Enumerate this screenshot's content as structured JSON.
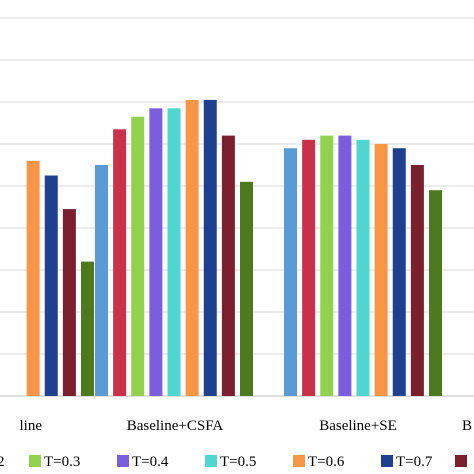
{
  "chart_data": {
    "type": "bar",
    "categories": [
      "line",
      "Baseline+CSFA",
      "Baseline+SE",
      "B"
    ],
    "series": [
      {
        "name": "",
        "color": "#5b9bd5",
        "values": [
          null,
          55.0,
          59.0,
          null
        ]
      },
      {
        "name": "",
        "color": "#c9304a",
        "values": [
          null,
          63.5,
          61.0,
          null
        ]
      },
      {
        "name": "T=0.3",
        "color": "#92d050",
        "values": [
          null,
          66.5,
          62.0,
          null
        ]
      },
      {
        "name": "T=0.4",
        "color": "#7b5ee0",
        "values": [
          null,
          68.5,
          62.0,
          null
        ]
      },
      {
        "name": "T=0.5",
        "color": "#4fd6d0",
        "values": [
          null,
          68.5,
          61.0,
          null
        ]
      },
      {
        "name": "T=0.6",
        "color": "#f79646",
        "values": [
          56.0,
          70.5,
          60.0,
          null
        ]
      },
      {
        "name": "T=0.7",
        "color": "#1f3f8f",
        "values": [
          52.5,
          70.5,
          59.0,
          null
        ]
      },
      {
        "name": "",
        "color": "#7b1f2e",
        "values": [
          44.5,
          62.0,
          55.0,
          null
        ]
      },
      {
        "name": "",
        "color": "#4e7a1f",
        "values": [
          32.0,
          51.0,
          49.0,
          null
        ]
      }
    ],
    "ylim": [
      0,
      94
    ],
    "grid": true,
    "legend": {
      "position": "bottom",
      "visible_entries": [
        "2",
        "T=0.3",
        "T=0.4",
        "T=0.5",
        "T=0.6",
        "T=0.7"
      ]
    }
  }
}
